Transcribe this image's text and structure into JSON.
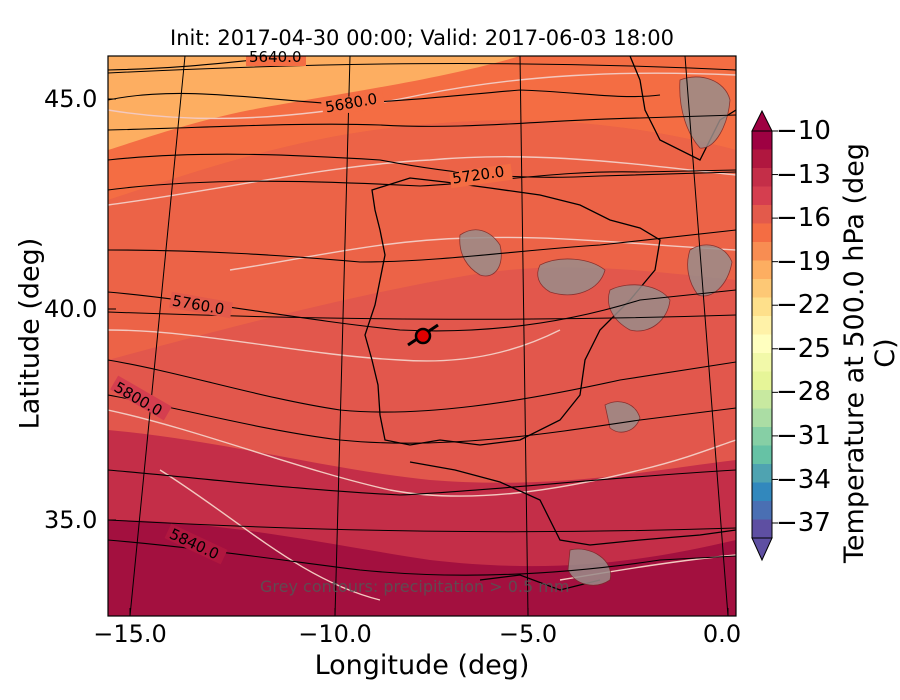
{
  "title": "Init: 2017-04-30 00:00; Valid: 2017-06-03 18:00",
  "xlabel": "Longitude (deg)",
  "ylabel": "Latitude (deg)",
  "colorbar": {
    "label": "Temperature at 500.0 hPa (deg C)",
    "ticks": [
      "−10",
      "−13",
      "−16",
      "−19",
      "−22",
      "−25",
      "−28",
      "−31",
      "−34",
      "−37"
    ],
    "colors": [
      "#9e0142",
      "#b0173f",
      "#c42e48",
      "#d53e4f",
      "#e35a4b",
      "#f46d43",
      "#f88d52",
      "#fdae61",
      "#fdc875",
      "#fee08b",
      "#fff2a8",
      "#ffffbf",
      "#f2f9a9",
      "#e6f598",
      "#c8e9a0",
      "#abdda4",
      "#86cfa5",
      "#66c2a5",
      "#4fa3b1",
      "#3288bd",
      "#4a6fb3",
      "#5e4fa2"
    ]
  },
  "x_ticks": [
    "−15.0",
    "−10.0",
    "−5.0",
    "0.0"
  ],
  "y_ticks": [
    "45.0",
    "40.0",
    "35.0"
  ],
  "contour_labels": [
    "5640.0",
    "5680.0",
    "5720.0",
    "5760.0",
    "5800.0",
    "5840.0"
  ],
  "note": "Grey contours: precipitation > 0.5 mm",
  "marker": {
    "lon": -7.6,
    "lat": 39.3,
    "color": "#e00000"
  },
  "chart_data": {
    "type": "heatmap",
    "title": "Init: 2017-04-30 00:00; Valid: 2017-06-03 18:00",
    "xlabel": "Longitude (deg)",
    "ylabel": "Latitude (deg)",
    "xlim": [
      -15.8,
      0.1
    ],
    "ylim": [
      32.5,
      46.0
    ],
    "field": "Temperature at 500.0 hPa (deg C)",
    "color_range": [
      -38,
      -10
    ],
    "colormap": "Spectral",
    "height_contours_m": [
      5640,
      5680,
      5720,
      5760,
      5800,
      5840
    ],
    "highlighted_point": {
      "lon": -7.6,
      "lat": 39.3
    }
  }
}
